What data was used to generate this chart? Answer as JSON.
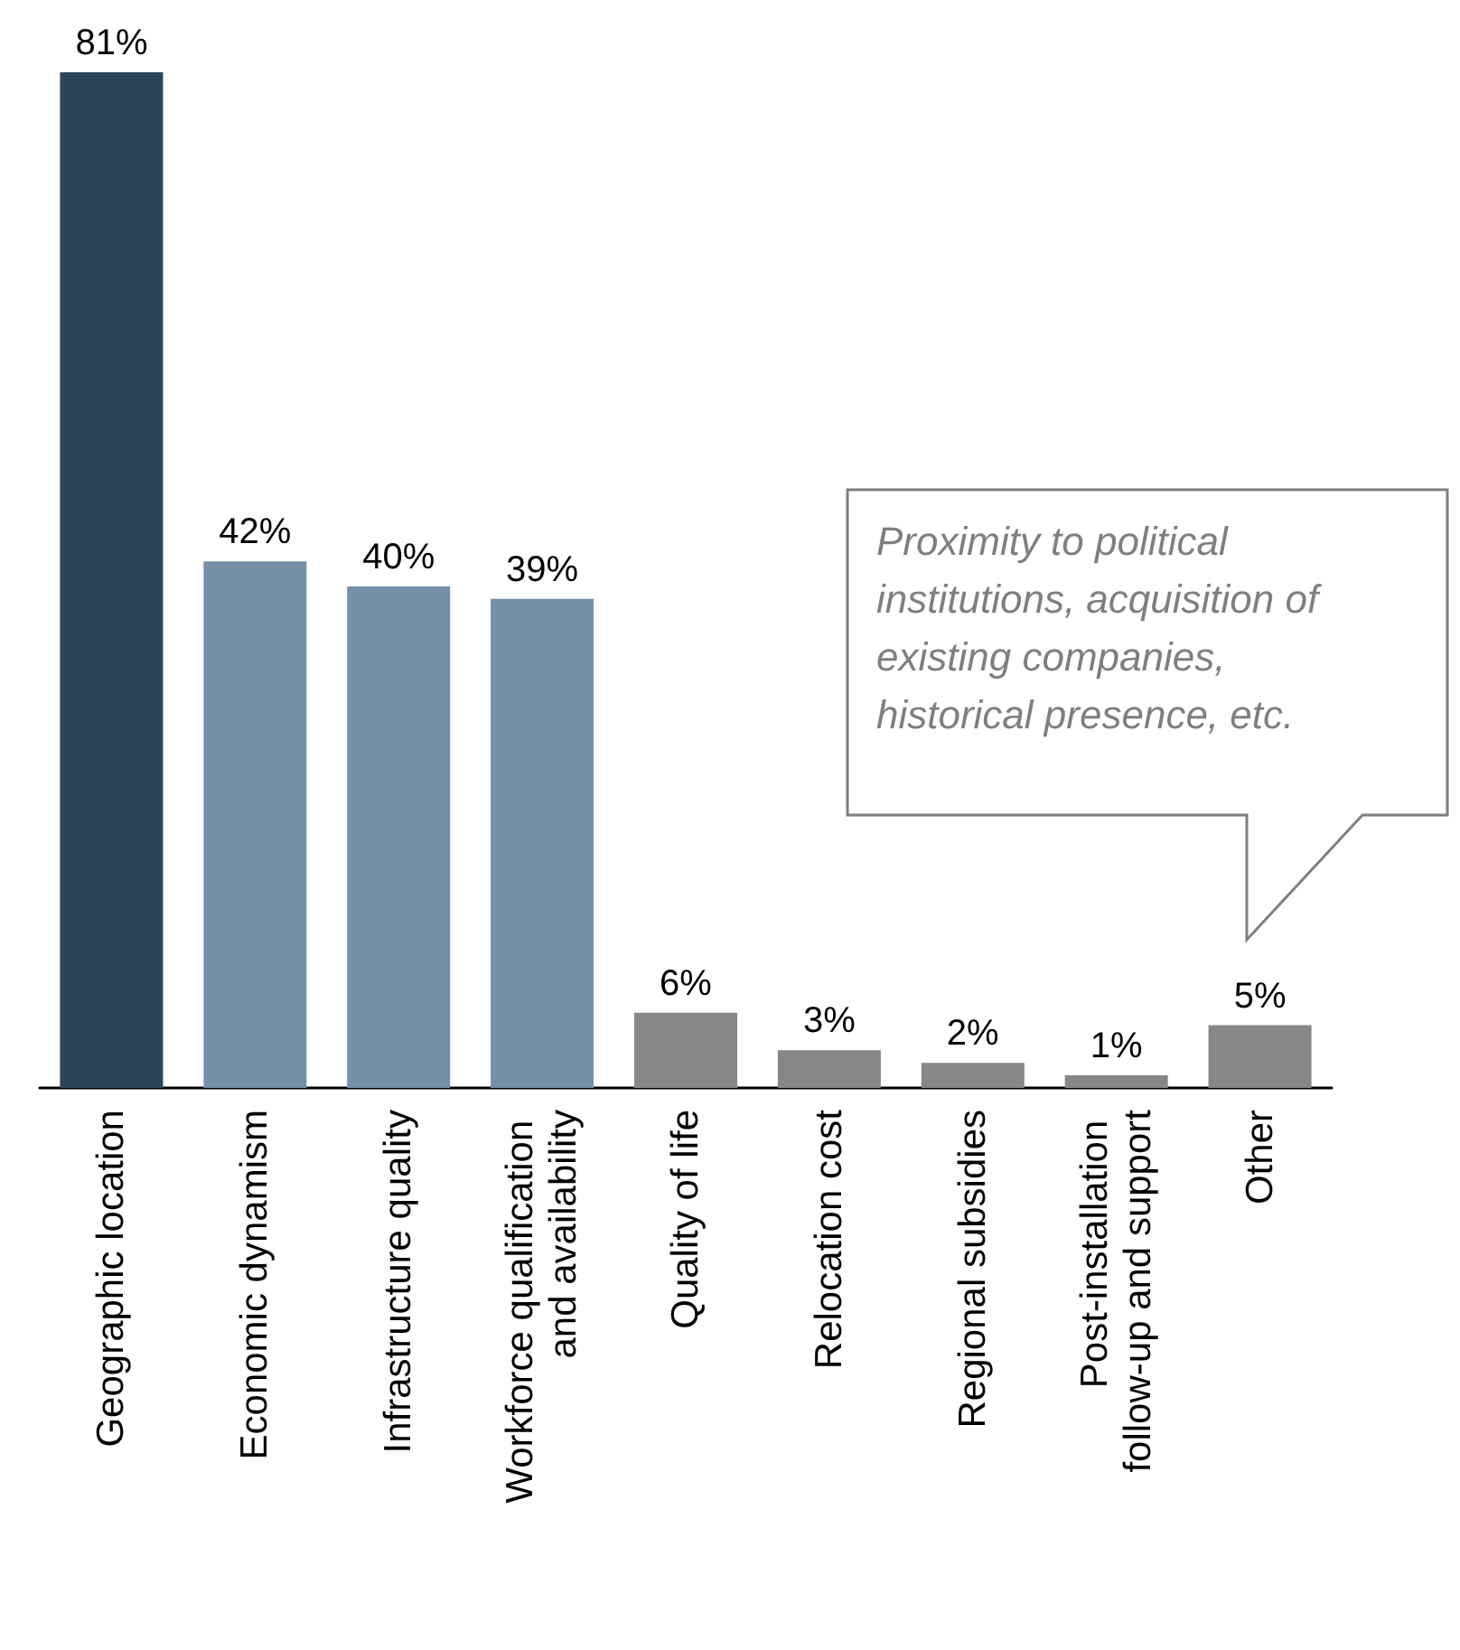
{
  "chart_data": {
    "type": "bar",
    "categories": [
      "Geographic location",
      "Economic dynamism",
      "Infrastructure quality",
      "Workforce qualification and availability",
      "Quality of life",
      "Relocation cost",
      "Regional subsidies",
      "Post-installation follow-up and support",
      "Other"
    ],
    "values": [
      81,
      42,
      40,
      39,
      6,
      3,
      2,
      1,
      5
    ],
    "colors": [
      "#2e4457",
      "#7590a9",
      "#7590a9",
      "#7590a9",
      "#878787",
      "#878787",
      "#878787",
      "#878787",
      "#878787"
    ],
    "value_labels": [
      "81%",
      "42%",
      "40%",
      "39%",
      "6%",
      "3%",
      "2%",
      "1%",
      "5%"
    ],
    "annotations": [
      "Proximity to political institutions, acquisition of existing companies, historical presence, etc."
    ],
    "grid": false
  }
}
